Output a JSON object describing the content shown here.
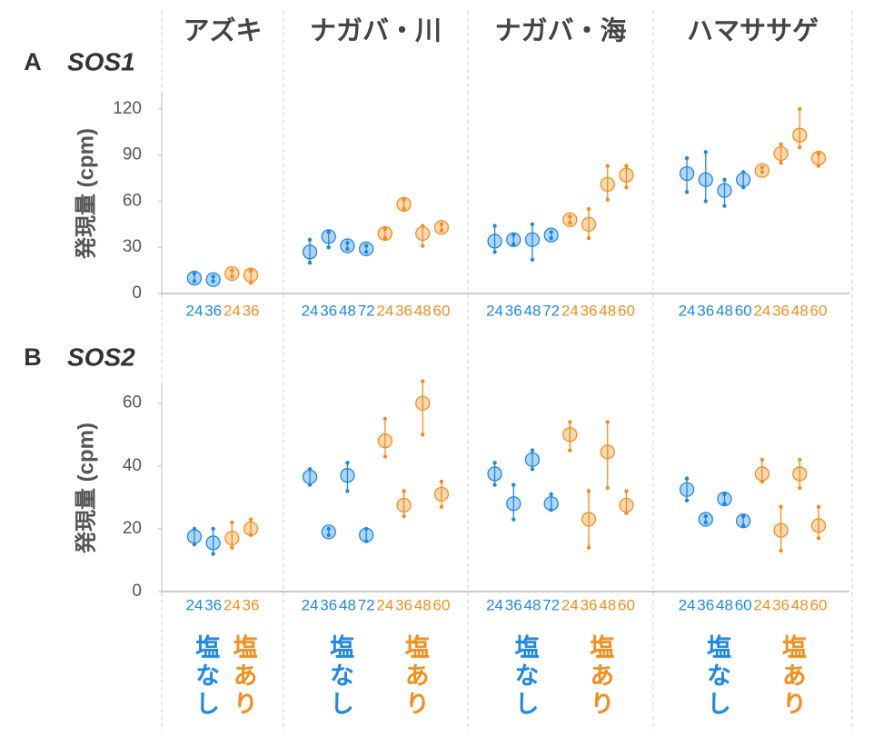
{
  "columns": [
    "アズキ",
    "ナガバ・川",
    "ナガバ・海",
    "ハマササゲ"
  ],
  "conditions": [
    {
      "name": "塩なし",
      "color": "#1e88e5"
    },
    {
      "name": "塩あり",
      "color": "#f28e1c"
    }
  ],
  "chart_data": [
    {
      "type": "dotplot",
      "label": "A",
      "title": "SOS1",
      "ylabel": "発現量 (cpm)",
      "ylim": [
        0,
        130
      ],
      "yticks": [
        0,
        30,
        60,
        90,
        120
      ],
      "panels": [
        {
          "series": [
            {
              "x": [
                "24",
                "36"
              ],
              "values": [
                10,
                9
              ],
              "low": [
                8,
                8
              ],
              "high": [
                13,
                11
              ]
            },
            {
              "x": [
                "24",
                "36"
              ],
              "values": [
                13,
                12
              ],
              "low": [
                11,
                7
              ],
              "high": [
                15,
                15
              ]
            }
          ]
        },
        {
          "series": [
            {
              "x": [
                "24",
                "36",
                "48",
                "72"
              ],
              "values": [
                27,
                37,
                31,
                29
              ],
              "low": [
                20,
                30,
                29,
                27
              ],
              "high": [
                35,
                40,
                33,
                31
              ]
            },
            {
              "x": [
                "24",
                "36",
                "48",
                "60"
              ],
              "values": [
                39,
                58,
                39,
                43
              ],
              "low": [
                36,
                55,
                31,
                41
              ],
              "high": [
                42,
                61,
                44,
                45
              ]
            }
          ]
        },
        {
          "series": [
            {
              "x": [
                "24",
                "36",
                "48",
                "72"
              ],
              "values": [
                34,
                35,
                35,
                38
              ],
              "low": [
                27,
                32,
                22,
                36
              ],
              "high": [
                44,
                38,
                45,
                40
              ]
            },
            {
              "x": [
                "24",
                "36",
                "48",
                "60"
              ],
              "values": [
                48,
                45,
                71,
                77
              ],
              "low": [
                46,
                36,
                61,
                69
              ],
              "high": [
                50,
                55,
                83,
                83
              ]
            }
          ]
        },
        {
          "series": [
            {
              "x": [
                "24",
                "36",
                "48",
                "60"
              ],
              "values": [
                78,
                74,
                67,
                74
              ],
              "low": [
                66,
                60,
                57,
                69
              ],
              "high": [
                88,
                92,
                74,
                79
              ]
            },
            {
              "x": [
                "24",
                "36",
                "48",
                "60"
              ],
              "values": [
                80,
                91,
                103,
                88
              ],
              "low": [
                79,
                85,
                95,
                83
              ],
              "high": [
                82,
                97,
                120,
                91
              ]
            }
          ]
        }
      ]
    },
    {
      "type": "dotplot",
      "label": "B",
      "title": "SOS2",
      "ylabel": "発現量 (cpm)",
      "ylim": [
        0,
        66
      ],
      "yticks": [
        0,
        20,
        40,
        60
      ],
      "panels": [
        {
          "series": [
            {
              "x": [
                "24",
                "36"
              ],
              "values": [
                17.5,
                15.5
              ],
              "low": [
                15,
                12
              ],
              "high": [
                20,
                20
              ]
            },
            {
              "x": [
                "24",
                "36"
              ],
              "values": [
                17,
                20
              ],
              "low": [
                14,
                18
              ],
              "high": [
                22,
                23
              ]
            }
          ]
        },
        {
          "series": [
            {
              "x": [
                "24",
                "36",
                "48",
                "72"
              ],
              "values": [
                36.5,
                19,
                37,
                18
              ],
              "low": [
                34,
                18,
                32,
                16
              ],
              "high": [
                39,
                20,
                41,
                20
              ]
            },
            {
              "x": [
                "24",
                "36",
                "48",
                "60"
              ],
              "values": [
                48,
                27.5,
                60,
                31
              ],
              "low": [
                43,
                24,
                50,
                27
              ],
              "high": [
                55,
                32,
                67,
                35
              ]
            }
          ]
        },
        {
          "series": [
            {
              "x": [
                "24",
                "36",
                "48",
                "72"
              ],
              "values": [
                37.5,
                28,
                42,
                28
              ],
              "low": [
                34,
                23,
                39,
                26
              ],
              "high": [
                41,
                34,
                45,
                31
              ]
            },
            {
              "x": [
                "24",
                "36",
                "48",
                "60"
              ],
              "values": [
                50,
                23,
                44.5,
                27.5
              ],
              "low": [
                45,
                14,
                33,
                25
              ],
              "high": [
                54,
                32,
                54,
                32
              ]
            }
          ]
        },
        {
          "series": [
            {
              "x": [
                "24",
                "36",
                "48",
                "60"
              ],
              "values": [
                32.5,
                23,
                29.5,
                22.5
              ],
              "low": [
                29,
                22,
                28,
                21
              ],
              "high": [
                36,
                24,
                31,
                24
              ]
            },
            {
              "x": [
                "24",
                "36",
                "48",
                "60"
              ],
              "values": [
                37.5,
                19.5,
                37.5,
                21
              ],
              "low": [
                35,
                13,
                33,
                17
              ],
              "high": [
                42,
                27,
                42,
                27
              ]
            }
          ]
        }
      ]
    }
  ]
}
